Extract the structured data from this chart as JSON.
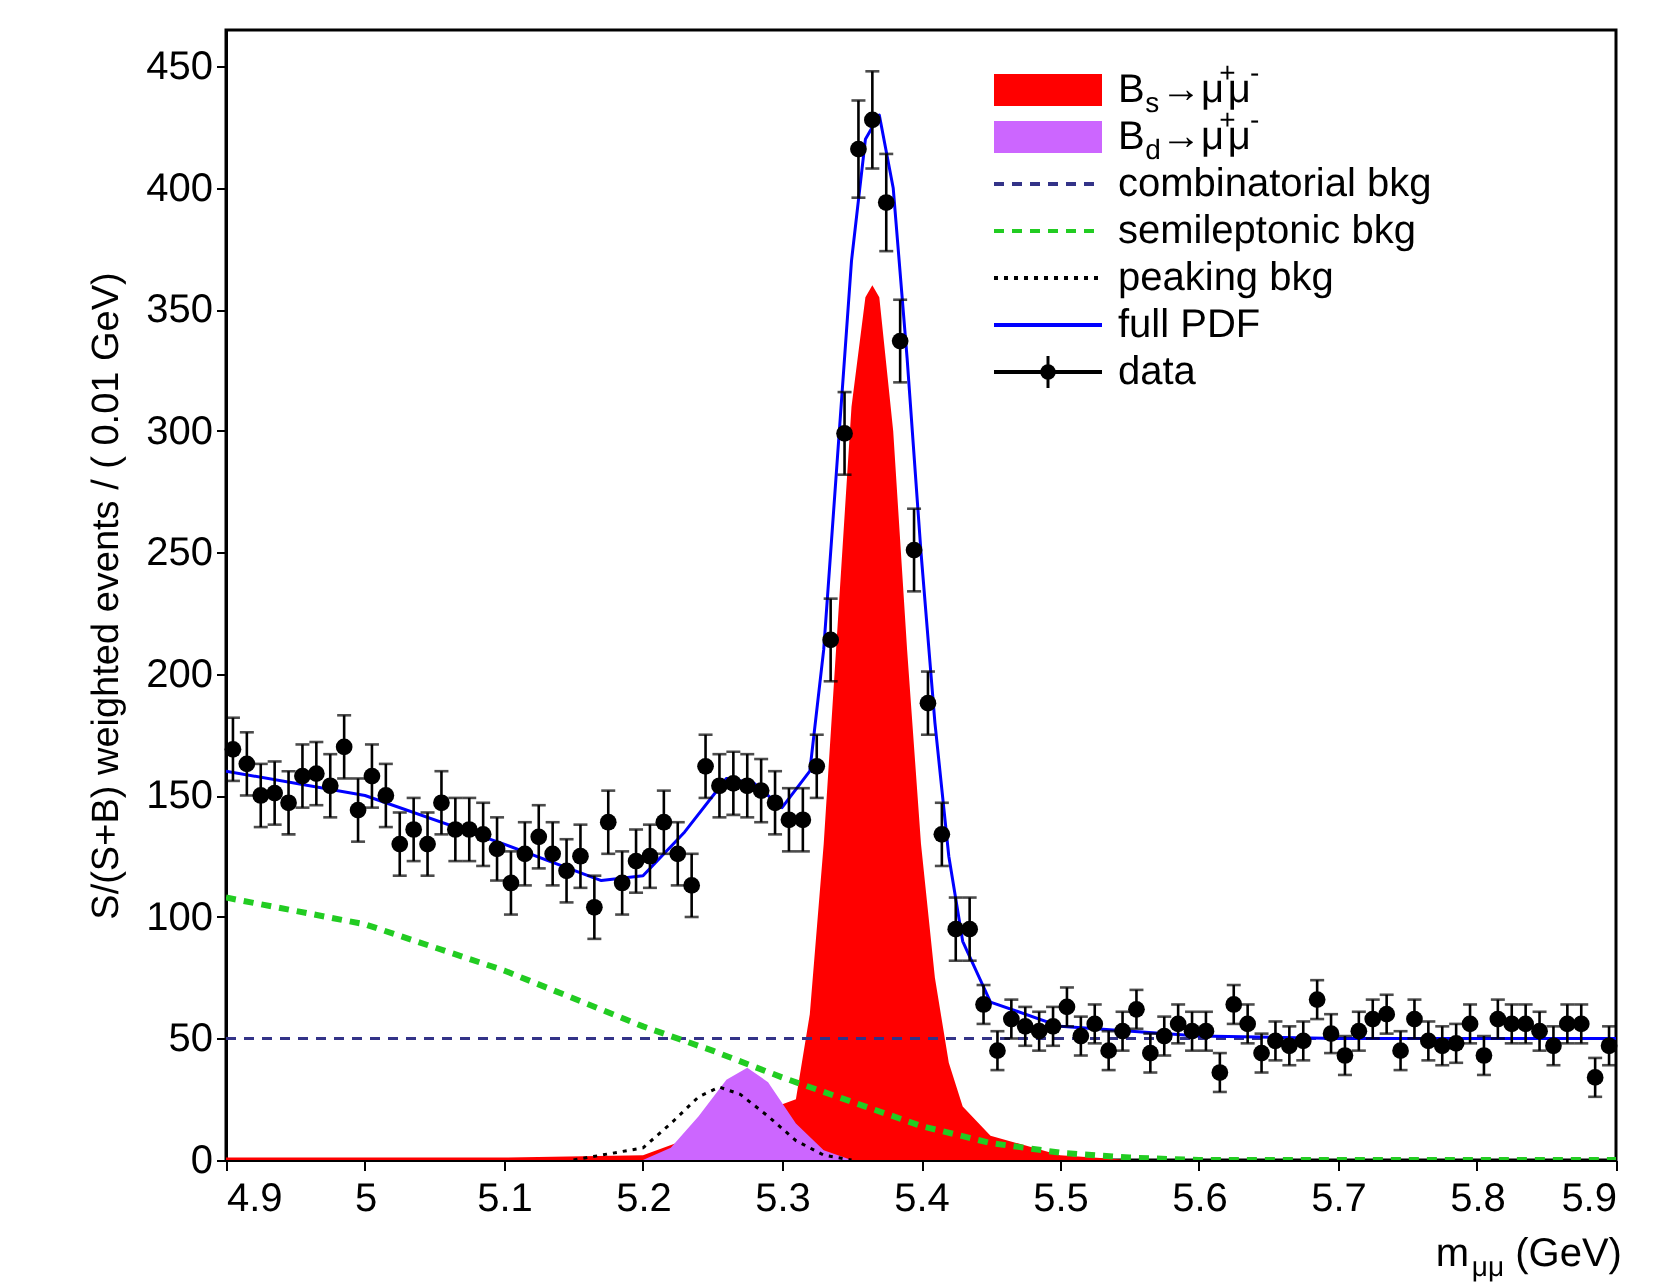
{
  "chart_data": {
    "type": "scatter",
    "ylabel": "S/(S+B) weighted events / ( 0.01 GeV)",
    "xlabel": "m$_{μμ}$ (GeV)",
    "xlim": [
      4.9,
      5.9
    ],
    "ylim": [
      0,
      465
    ],
    "xticks": [
      4.9,
      5.0,
      5.1,
      5.2,
      5.3,
      5.4,
      5.5,
      5.6,
      5.7,
      5.8,
      5.9
    ],
    "yticks": [
      0,
      50,
      100,
      150,
      200,
      250,
      300,
      350,
      400,
      450
    ],
    "grid": false,
    "legend": "top right",
    "series": [
      {
        "name": "B$_{s}$→μ$^{+}$μ$^{-}$",
        "type": "area",
        "color": "#ff0000",
        "x": [
          4.9,
          5.1,
          5.2,
          5.31,
          5.32,
          5.33,
          5.34,
          5.35,
          5.36,
          5.365,
          5.37,
          5.38,
          5.39,
          5.4,
          5.41,
          5.42,
          5.43,
          5.45,
          5.5,
          5.55,
          5.9
        ],
        "values": [
          1,
          1,
          2,
          25,
          60,
          130,
          220,
          310,
          355,
          360,
          355,
          300,
          210,
          130,
          75,
          40,
          22,
          10,
          2,
          0,
          0
        ]
      },
      {
        "name": "B$_{d}$→μ$^{+}$μ$^{-}$",
        "type": "area",
        "color": "#cc66ff",
        "x": [
          5.2,
          5.22,
          5.24,
          5.26,
          5.275,
          5.29,
          5.31,
          5.33,
          5.35
        ],
        "values": [
          0,
          5,
          18,
          33,
          38,
          32,
          15,
          4,
          0
        ]
      },
      {
        "name": "combinatorial bkg",
        "type": "line",
        "line_style": "dashed",
        "color": "#333388",
        "x": [
          4.9,
          5.9
        ],
        "values": [
          50,
          50
        ]
      },
      {
        "name": "semileptonic bkg",
        "type": "line",
        "line_style": "dashed",
        "color": "#22cc22",
        "x": [
          4.9,
          5.0,
          5.1,
          5.2,
          5.25,
          5.3,
          5.35,
          5.4,
          5.45,
          5.5,
          5.55,
          5.6,
          5.9
        ],
        "values": [
          108,
          97,
          78,
          55,
          45,
          34,
          24,
          14,
          7,
          3,
          1,
          0,
          0
        ]
      },
      {
        "name": "peaking bkg",
        "type": "line",
        "line_style": "dotted",
        "color": "#000000",
        "x": [
          5.15,
          5.2,
          5.22,
          5.24,
          5.255,
          5.27,
          5.29,
          5.31,
          5.33,
          5.35
        ],
        "values": [
          0,
          5,
          15,
          26,
          30,
          27,
          18,
          8,
          2,
          0
        ]
      },
      {
        "name": "full PDF",
        "type": "line",
        "line_style": "solid",
        "color": "#0000ff",
        "x": [
          4.9,
          5.0,
          5.1,
          5.17,
          5.2,
          5.23,
          5.26,
          5.28,
          5.3,
          5.32,
          5.33,
          5.34,
          5.35,
          5.36,
          5.37,
          5.38,
          5.39,
          5.4,
          5.41,
          5.42,
          5.43,
          5.45,
          5.5,
          5.6,
          5.7,
          5.9
        ],
        "values": [
          160,
          150,
          130,
          115,
          117,
          135,
          157,
          155,
          145,
          160,
          210,
          290,
          370,
          420,
          430,
          400,
          330,
          250,
          180,
          125,
          90,
          65,
          55,
          51,
          50,
          50
        ]
      },
      {
        "name": "data",
        "marker": "circle",
        "color": "#000000",
        "x": [
          4.905,
          4.915,
          4.925,
          4.935,
          4.945,
          4.955,
          4.965,
          4.975,
          4.985,
          4.995,
          5.005,
          5.015,
          5.025,
          5.035,
          5.045,
          5.055,
          5.065,
          5.075,
          5.085,
          5.095,
          5.105,
          5.115,
          5.125,
          5.135,
          5.145,
          5.155,
          5.165,
          5.175,
          5.185,
          5.195,
          5.205,
          5.215,
          5.225,
          5.235,
          5.245,
          5.255,
          5.265,
          5.275,
          5.285,
          5.295,
          5.305,
          5.315,
          5.325,
          5.335,
          5.345,
          5.355,
          5.365,
          5.375,
          5.385,
          5.395,
          5.405,
          5.415,
          5.425,
          5.435,
          5.445,
          5.455,
          5.465,
          5.475,
          5.485,
          5.495,
          5.505,
          5.515,
          5.525,
          5.535,
          5.545,
          5.555,
          5.565,
          5.575,
          5.585,
          5.595,
          5.605,
          5.615,
          5.625,
          5.635,
          5.645,
          5.655,
          5.665,
          5.675,
          5.685,
          5.695,
          5.705,
          5.715,
          5.725,
          5.735,
          5.745,
          5.755,
          5.765,
          5.775,
          5.785,
          5.795,
          5.805,
          5.815,
          5.825,
          5.835,
          5.845,
          5.855,
          5.865,
          5.875,
          5.885,
          5.895
        ],
        "values": [
          169,
          163,
          150,
          151,
          147,
          158,
          159,
          154,
          170,
          144,
          158,
          150,
          130,
          136,
          130,
          147,
          136,
          136,
          134,
          128,
          114,
          126,
          133,
          126,
          119,
          125,
          104,
          139,
          114,
          123,
          125,
          139,
          126,
          113,
          162,
          154,
          155,
          154,
          152,
          147,
          140,
          140,
          162,
          214,
          299,
          416,
          428,
          394,
          337,
          251,
          188,
          134,
          95,
          95,
          64,
          45,
          58,
          55,
          53,
          55,
          63,
          51,
          56,
          45,
          53,
          62,
          44,
          51,
          56,
          53,
          53,
          36,
          64,
          56,
          44,
          49,
          47,
          49,
          66,
          52,
          43,
          53,
          58,
          60,
          45,
          58,
          49,
          47,
          48,
          56,
          43,
          58,
          56,
          56,
          53,
          47,
          56,
          56,
          34,
          47
        ],
        "errors": [
          13,
          13,
          13,
          13,
          13,
          13,
          13,
          13,
          13,
          13,
          13,
          13,
          13,
          13,
          13,
          13,
          13,
          13,
          13,
          13,
          13,
          13,
          13,
          13,
          13,
          13,
          13,
          13,
          13,
          13,
          13,
          13,
          13,
          13,
          13,
          13,
          13,
          13,
          13,
          13,
          13,
          13,
          13,
          17,
          17,
          20,
          20,
          20,
          17,
          17,
          13,
          13,
          13,
          13,
          8,
          8,
          8,
          8,
          8,
          8,
          8,
          8,
          8,
          8,
          8,
          8,
          8,
          8,
          8,
          8,
          8,
          8,
          8,
          8,
          8,
          8,
          8,
          8,
          8,
          8,
          8,
          8,
          8,
          8,
          8,
          8,
          8,
          8,
          8,
          8,
          8,
          8,
          8,
          8,
          8,
          8,
          8,
          8,
          8,
          8
        ]
      }
    ]
  }
}
